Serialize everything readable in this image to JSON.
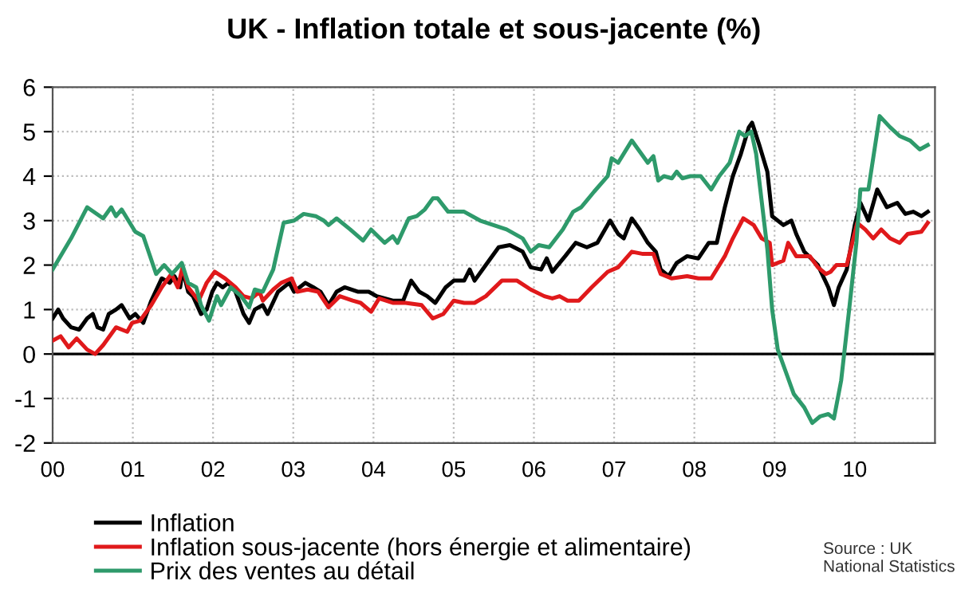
{
  "chart_data": {
    "type": "line",
    "title": "UK - Inflation totale et sous-jacente (%)",
    "xlim": [
      2000,
      2011
    ],
    "ylim": [
      -2,
      6
    ],
    "xticks": [
      {
        "value": 2000,
        "label": "00"
      },
      {
        "value": 2001,
        "label": "01"
      },
      {
        "value": 2002,
        "label": "02"
      },
      {
        "value": 2003,
        "label": "03"
      },
      {
        "value": 2004,
        "label": "04"
      },
      {
        "value": 2005,
        "label": "05"
      },
      {
        "value": 2006,
        "label": "06"
      },
      {
        "value": 2007,
        "label": "07"
      },
      {
        "value": 2008,
        "label": "08"
      },
      {
        "value": 2009,
        "label": "09"
      },
      {
        "value": 2010,
        "label": "10"
      }
    ],
    "yticks": [
      -2,
      -1,
      0,
      1,
      2,
      3,
      4,
      5,
      6
    ],
    "grid": true,
    "legend": "bottom left",
    "line_style": "solid",
    "marker": "none",
    "ref_lines": [
      {
        "axis": "y",
        "value": 0,
        "color": "#000000"
      }
    ],
    "annotations": [
      "Source : UK\nNational Statistics"
    ],
    "series": [
      {
        "name": "Inflation",
        "color": "#000000",
        "x": [
          2000,
          2000.07,
          2000.13,
          2000.23,
          2000.33,
          2000.43,
          2000.5,
          2000.56,
          2000.63,
          2000.7,
          2000.79,
          2000.86,
          2000.96,
          2001.03,
          2001.13,
          2001.23,
          2001.36,
          2001.46,
          2001.52,
          2001.59,
          2001.62,
          2001.69,
          2001.75,
          2001.85,
          2001.92,
          2001.99,
          2002.05,
          2002.12,
          2002.19,
          2002.28,
          2002.38,
          2002.45,
          2002.52,
          2002.62,
          2002.68,
          2002.81,
          2002.95,
          2003.01,
          2003.15,
          2003.25,
          2003.34,
          2003.44,
          2003.54,
          2003.64,
          2003.81,
          2003.94,
          2004.04,
          2004.24,
          2004.37,
          2004.47,
          2004.57,
          2004.67,
          2004.77,
          2004.9,
          2005,
          2005.13,
          2005.2,
          2005.26,
          2005.4,
          2005.56,
          2005.7,
          2005.86,
          2005.96,
          2006.09,
          2006.16,
          2006.23,
          2006.39,
          2006.52,
          2006.66,
          2006.79,
          2006.95,
          2007.05,
          2007.12,
          2007.22,
          2007.32,
          2007.42,
          2007.52,
          2007.58,
          2007.68,
          2007.78,
          2007.91,
          2008.05,
          2008.18,
          2008.28,
          2008.38,
          2008.48,
          2008.58,
          2008.68,
          2008.72,
          2008.81,
          2008.91,
          2008.97,
          2009.11,
          2009.21,
          2009.27,
          2009.37,
          2009.54,
          2009.67,
          2009.74,
          2009.8,
          2009.9,
          2010,
          2010.07,
          2010.17,
          2010.28,
          2010.4,
          2010.53,
          2010.63,
          2010.73,
          2010.83,
          2010.91
        ],
        "values": [
          0.8,
          1.0,
          0.8,
          0.6,
          0.55,
          0.8,
          0.9,
          0.6,
          0.55,
          0.9,
          1.0,
          1.1,
          0.8,
          0.9,
          0.7,
          1.2,
          1.7,
          1.6,
          1.75,
          1.5,
          1.9,
          1.4,
          1.3,
          0.9,
          1.0,
          1.4,
          1.6,
          1.5,
          1.6,
          1.4,
          0.9,
          0.7,
          1.0,
          1.1,
          0.9,
          1.4,
          1.6,
          1.4,
          1.6,
          1.5,
          1.4,
          1.1,
          1.4,
          1.5,
          1.4,
          1.4,
          1.3,
          1.2,
          1.2,
          1.65,
          1.4,
          1.3,
          1.15,
          1.5,
          1.65,
          1.65,
          1.9,
          1.65,
          2.0,
          2.4,
          2.45,
          2.3,
          1.95,
          1.9,
          2.15,
          1.85,
          2.2,
          2.5,
          2.4,
          2.5,
          3.0,
          2.7,
          2.6,
          3.05,
          2.8,
          2.5,
          2.3,
          1.9,
          1.75,
          2.05,
          2.2,
          2.15,
          2.5,
          2.5,
          3.3,
          4.0,
          4.5,
          5.1,
          5.2,
          4.7,
          4.1,
          3.1,
          2.9,
          3.0,
          2.7,
          2.3,
          2.0,
          1.5,
          1.1,
          1.5,
          1.9,
          2.9,
          3.4,
          3.0,
          3.7,
          3.3,
          3.4,
          3.15,
          3.2,
          3.1,
          3.2
        ]
      },
      {
        "name": "Inflation sous-jacente (hors énergie et alimentaire)",
        "color": "#e0191b",
        "x": [
          2000,
          2000.1,
          2000.2,
          2000.3,
          2000.43,
          2000.53,
          2000.63,
          2000.79,
          2000.93,
          2000.99,
          2001.09,
          2001.23,
          2001.36,
          2001.48,
          2001.56,
          2001.62,
          2001.69,
          2001.82,
          2001.92,
          2002.02,
          2002.15,
          2002.28,
          2002.38,
          2002.48,
          2002.58,
          2002.62,
          2002.75,
          2002.85,
          2002.98,
          2003.05,
          2003.18,
          2003.31,
          2003.44,
          2003.58,
          2003.74,
          2003.84,
          2003.97,
          2004.07,
          2004.24,
          2004.4,
          2004.6,
          2004.74,
          2004.87,
          2005,
          2005.13,
          2005.26,
          2005.4,
          2005.6,
          2005.79,
          2005.96,
          2006.13,
          2006.23,
          2006.32,
          2006.42,
          2006.56,
          2006.72,
          2006.92,
          2007.05,
          2007.22,
          2007.36,
          2007.49,
          2007.58,
          2007.72,
          2007.91,
          2008.05,
          2008.21,
          2008.38,
          2008.48,
          2008.61,
          2008.74,
          2008.84,
          2008.94,
          2008.97,
          2009.11,
          2009.17,
          2009.27,
          2009.44,
          2009.54,
          2009.64,
          2009.7,
          2009.77,
          2009.9,
          2010.03,
          2010.13,
          2010.23,
          2010.33,
          2010.44,
          2010.56,
          2010.66,
          2010.83,
          2010.91
        ],
        "values": [
          0.3,
          0.4,
          0.15,
          0.35,
          0.1,
          0.0,
          0.2,
          0.6,
          0.5,
          0.7,
          0.75,
          1.1,
          1.5,
          1.8,
          1.5,
          1.95,
          1.5,
          1.2,
          1.6,
          1.85,
          1.7,
          1.5,
          1.3,
          1.25,
          1.4,
          1.2,
          1.45,
          1.6,
          1.7,
          1.4,
          1.45,
          1.4,
          1.05,
          1.3,
          1.2,
          1.15,
          0.95,
          1.25,
          1.15,
          1.15,
          1.1,
          0.8,
          0.9,
          1.2,
          1.15,
          1.15,
          1.3,
          1.65,
          1.65,
          1.45,
          1.3,
          1.25,
          1.3,
          1.2,
          1.2,
          1.5,
          1.85,
          1.95,
          2.3,
          2.25,
          2.25,
          1.8,
          1.7,
          1.75,
          1.7,
          1.7,
          2.2,
          2.6,
          3.05,
          2.9,
          2.6,
          2.5,
          2.0,
          2.1,
          2.5,
          2.2,
          2.2,
          1.95,
          1.8,
          1.85,
          2.0,
          2.0,
          2.95,
          2.8,
          2.6,
          2.8,
          2.6,
          2.5,
          2.7,
          2.75,
          2.95
        ]
      },
      {
        "name": "Prix des ventes au détail",
        "color": "#2e9a6b",
        "x": [
          2000,
          2000.23,
          2000.43,
          2000.63,
          2000.73,
          2000.79,
          2000.86,
          2001.03,
          2001.13,
          2001.29,
          2001.39,
          2001.49,
          2001.61,
          2001.69,
          2001.79,
          2001.85,
          2001.95,
          2002.05,
          2002.1,
          2002.22,
          2002.35,
          2002.45,
          2002.52,
          2002.62,
          2002.75,
          2002.88,
          2003.01,
          2003.13,
          2003.28,
          2003.38,
          2003.44,
          2003.54,
          2003.71,
          2003.87,
          2003.97,
          2004.14,
          2004.24,
          2004.3,
          2004.44,
          2004.54,
          2004.64,
          2004.74,
          2004.8,
          2004.93,
          2005.13,
          2005.33,
          2005.66,
          2005.86,
          2005.96,
          2006.06,
          2006.19,
          2006.36,
          2006.49,
          2006.59,
          2006.75,
          2006.92,
          2006.97,
          2007.05,
          2007.22,
          2007.32,
          2007.42,
          2007.49,
          2007.55,
          2007.62,
          2007.72,
          2007.78,
          2007.85,
          2007.95,
          2008.08,
          2008.21,
          2008.31,
          2008.44,
          2008.56,
          2008.63,
          2008.71,
          2008.77,
          2008.91,
          2008.97,
          2009.04,
          2009.14,
          2009.24,
          2009.37,
          2009.47,
          2009.57,
          2009.67,
          2009.74,
          2009.83,
          2009.93,
          2010.02,
          2010.07,
          2010.17,
          2010.31,
          2010.44,
          2010.56,
          2010.69,
          2010.81,
          2010.91
        ],
        "values": [
          1.9,
          2.6,
          3.3,
          3.05,
          3.3,
          3.1,
          3.25,
          2.75,
          2.65,
          1.8,
          2.0,
          1.8,
          2.05,
          1.6,
          1.5,
          1.1,
          0.75,
          1.3,
          1.1,
          1.5,
          1.3,
          1.05,
          1.45,
          1.4,
          1.9,
          2.95,
          3.0,
          3.15,
          3.1,
          3.0,
          2.9,
          3.05,
          2.8,
          2.55,
          2.8,
          2.5,
          2.65,
          2.5,
          3.05,
          3.1,
          3.25,
          3.5,
          3.5,
          3.2,
          3.2,
          3.0,
          2.8,
          2.6,
          2.3,
          2.45,
          2.4,
          2.8,
          3.2,
          3.3,
          3.65,
          4.0,
          4.4,
          4.3,
          4.8,
          4.55,
          4.3,
          4.45,
          3.9,
          4.0,
          3.95,
          4.1,
          3.95,
          4.0,
          4.0,
          3.7,
          4.0,
          4.3,
          5.0,
          4.9,
          5.0,
          4.5,
          2.36,
          1.0,
          0.1,
          -0.4,
          -0.9,
          -1.2,
          -1.55,
          -1.4,
          -1.35,
          -1.45,
          -0.6,
          1.0,
          2.5,
          3.7,
          3.7,
          5.35,
          5.1,
          4.9,
          4.8,
          4.6,
          4.7
        ]
      }
    ]
  }
}
